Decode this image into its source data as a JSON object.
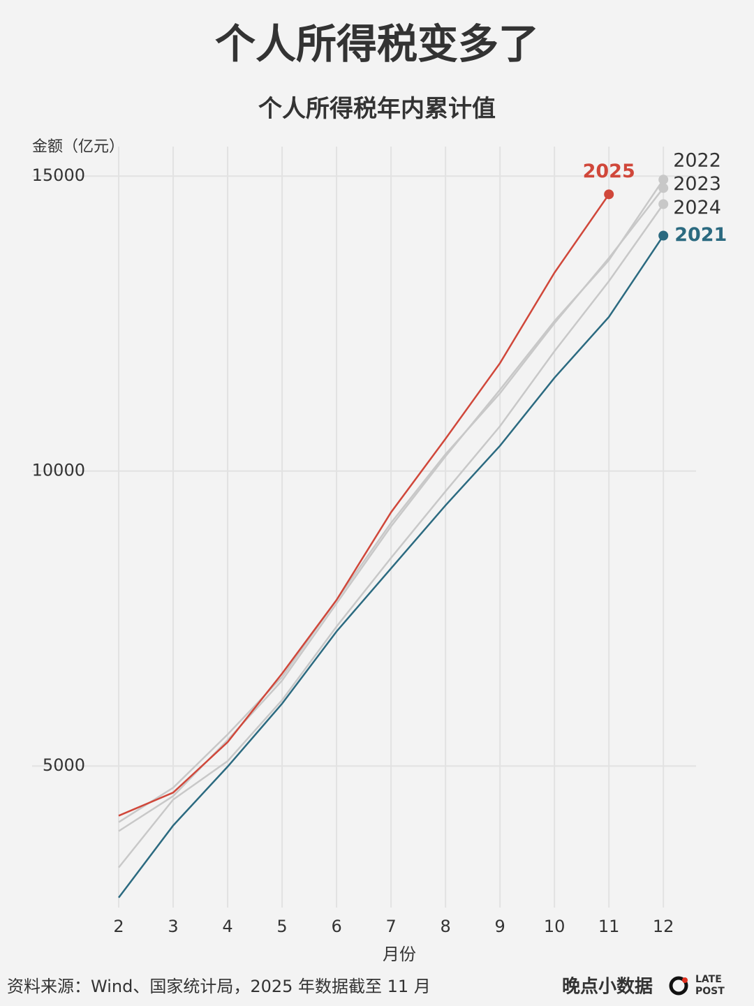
{
  "chart_data": {
    "type": "line",
    "title": "个人所得税变多了",
    "subtitle": "个人所得税年内累计值",
    "y_label": "金额（亿元）",
    "x_label": "月份",
    "source": "资料来源：Wind、国家统计局，2025 年数据截至 11 月",
    "brand": "晚点小数据",
    "brand_mark": [
      "LATE",
      "POST"
    ],
    "x": [
      2,
      3,
      4,
      5,
      6,
      7,
      8,
      9,
      10,
      11,
      12
    ],
    "xlim": [
      1.5,
      12.6
    ],
    "xticks": [
      2,
      3,
      4,
      5,
      6,
      7,
      8,
      9,
      10,
      11,
      12
    ],
    "ylim": [
      2600,
      15500
    ],
    "yticks": [
      5000,
      10000,
      15000
    ],
    "grid": true,
    "series": [
      {
        "name": "2022",
        "color": "#c8c8c8",
        "values": [
          3896,
          4490,
          5440,
          6449,
          7756,
          9062,
          10250,
          11378,
          12542,
          13575,
          14941
        ]
      },
      {
        "name": "2023",
        "color": "#c8c8c8",
        "values": [
          4047,
          4632,
          5535,
          6509,
          7815,
          9121,
          10285,
          11318,
          12506,
          13611,
          14798
        ]
      },
      {
        "name": "2024",
        "color": "#c8c8c8",
        "values": [
          3279,
          4430,
          5083,
          6117,
          7364,
          8528,
          9656,
          10760,
          12031,
          13219,
          14525
        ]
      },
      {
        "name": "2021",
        "color": "#2b6a80",
        "values": [
          2768,
          3991,
          4989,
          6057,
          7281,
          8349,
          9418,
          10428,
          11580,
          12613,
          13991
        ]
      },
      {
        "name": "2025",
        "color": "#d0473a",
        "values": [
          4157,
          4549,
          5404,
          6568,
          7815,
          9300,
          10547,
          11829,
          13361,
          14691,
          null
        ]
      }
    ]
  }
}
